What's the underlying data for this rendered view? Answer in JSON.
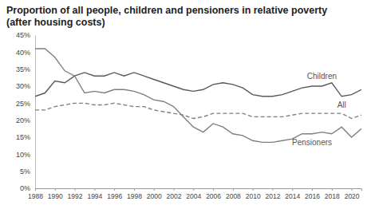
{
  "chart_data": {
    "type": "line",
    "title": "Proportion of all people, children and pensioners in relative poverty",
    "subtitle": "(after housing costs)",
    "x": [
      1988,
      1989,
      1990,
      1991,
      1992,
      1993,
      1994,
      1995,
      1996,
      1997,
      1998,
      1999,
      2000,
      2001,
      2002,
      2003,
      2004,
      2005,
      2006,
      2007,
      2008,
      2009,
      2010,
      2011,
      2012,
      2013,
      2014,
      2015,
      2016,
      2017,
      2018,
      2019,
      2020,
      2021
    ],
    "series": [
      {
        "name": "Children",
        "color": "#595959",
        "line_style": "solid",
        "values": [
          27,
          28,
          31.5,
          31,
          33,
          34,
          33,
          33,
          34,
          33,
          34,
          33,
          32,
          31,
          30,
          29,
          28.5,
          29,
          30.5,
          31,
          30.5,
          29.5,
          27.5,
          27,
          27,
          27.5,
          28.5,
          29.5,
          30,
          30,
          31,
          27,
          27.5,
          29
        ]
      },
      {
        "name": "All",
        "color": "#7f7f7f",
        "line_style": "dashed",
        "values": [
          23,
          23,
          24,
          24.5,
          25,
          25,
          24.5,
          24.5,
          25,
          24.5,
          24,
          24,
          23,
          22.5,
          22,
          21.5,
          20.5,
          21,
          22,
          22,
          22,
          22,
          21,
          21,
          21,
          21,
          21.5,
          22,
          22,
          22,
          22,
          22,
          20.5,
          21.5
        ]
      },
      {
        "name": "Pensioners",
        "color": "#7f7f7f",
        "line_style": "solid",
        "values": [
          41,
          41,
          38.5,
          34.5,
          33,
          28,
          28.5,
          28,
          29,
          29,
          28.5,
          27.5,
          26,
          25.5,
          24,
          21,
          18,
          16.5,
          19,
          18,
          16,
          15.5,
          14,
          13.5,
          13.5,
          14,
          14.5,
          16,
          16,
          16.5,
          16,
          18,
          15,
          17.5
        ]
      }
    ],
    "xlim": [
      1988,
      2021
    ],
    "xticks": [
      1988,
      1990,
      1992,
      1994,
      1996,
      1998,
      2000,
      2002,
      2004,
      2006,
      2008,
      2010,
      2012,
      2014,
      2016,
      2018,
      2020
    ],
    "ylim": [
      0,
      45
    ],
    "yticks": [
      {
        "value": 0,
        "label": "0%"
      },
      {
        "value": 5,
        "label": "5%"
      },
      {
        "value": 10,
        "label": "10%"
      },
      {
        "value": 15,
        "label": "15%"
      },
      {
        "value": 20,
        "label": "20%"
      },
      {
        "value": 25,
        "label": "25%"
      },
      {
        "value": 30,
        "label": "30%"
      },
      {
        "value": 35,
        "label": "35%"
      },
      {
        "value": 40,
        "label": "40%"
      },
      {
        "value": 45,
        "label": "45%"
      }
    ],
    "grid": false
  }
}
